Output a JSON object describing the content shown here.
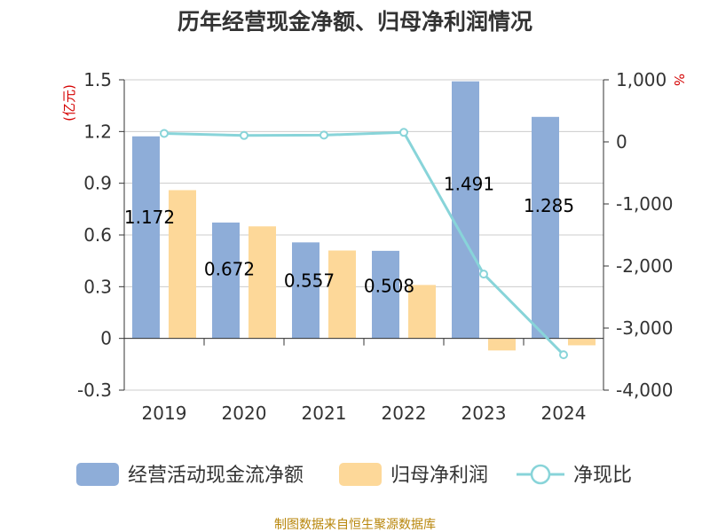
{
  "title": "历年经营现金净额、归母净利润情况",
  "source": "制图数据来自恒生聚源数据库",
  "chart_data": {
    "type": "bar",
    "categories": [
      "2019",
      "2020",
      "2021",
      "2022",
      "2023",
      "2024"
    ],
    "left_axis": {
      "unit": "(亿元)",
      "ylim": [
        -0.3,
        1.5
      ],
      "ticks": [
        -0.3,
        0,
        0.3,
        0.6,
        0.9,
        1.2,
        1.5
      ],
      "tick_labels": [
        "-0.3",
        "0",
        "0.3",
        "0.6",
        "0.9",
        "1.2",
        "1.5"
      ]
    },
    "right_axis": {
      "unit": "%",
      "ylim": [
        -4000,
        1000
      ],
      "ticks": [
        -4000,
        -3000,
        -2000,
        -1000,
        0,
        1000
      ],
      "tick_labels": [
        "-4,000",
        "-3,000",
        "-2,000",
        "-1,000",
        "0",
        "1,000"
      ]
    },
    "series": [
      {
        "name": "经营活动现金流净额",
        "type": "bar",
        "axis": "left",
        "color": "#8eadd8",
        "values": [
          1.172,
          0.672,
          0.557,
          0.508,
          1.491,
          1.285
        ],
        "labels": [
          "1.172",
          "0.672",
          "0.557",
          "0.508",
          "1.491",
          "1.285"
        ]
      },
      {
        "name": "归母净利润",
        "type": "bar",
        "axis": "left",
        "color": "#fdd899",
        "values": [
          0.86,
          0.65,
          0.51,
          0.31,
          -0.07,
          -0.04
        ]
      },
      {
        "name": "净现比",
        "type": "line",
        "axis": "right",
        "color": "#88d4d9",
        "values": [
          136,
          103,
          109,
          153,
          -2130,
          -3430
        ]
      }
    ],
    "grid": true,
    "legend": "bottom"
  }
}
